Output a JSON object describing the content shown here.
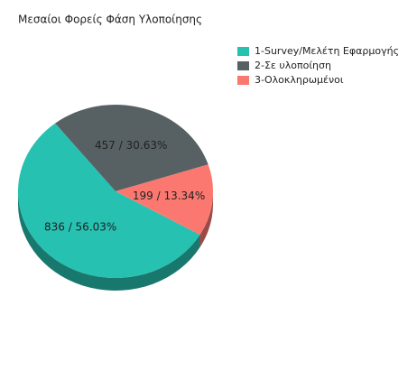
{
  "chart_data": {
    "type": "pie",
    "title": "Μεσαίοι Φορείς Φάση Υλοποίησης",
    "categories": [
      "1-Survey/Μελέτη Εφαρμογής",
      "2-Σε υλοποίηση",
      "3-Ολοκληρωμένοι"
    ],
    "values": [
      836,
      457,
      199
    ],
    "value_labels": [
      "836 /  56.03%",
      "457 /  30.63%",
      "199 /  13.34%"
    ],
    "colors": [
      "#27c1b2",
      "#576164",
      "#fb7871"
    ],
    "legend": "top-right"
  }
}
